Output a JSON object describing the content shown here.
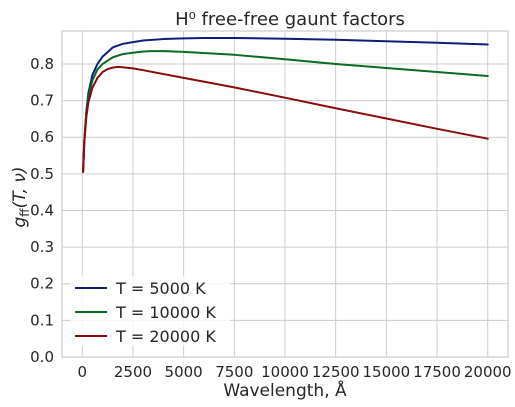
{
  "chart_data": {
    "type": "line",
    "title": "H⁰ free-free gaunt factors",
    "xlabel": "Wavelength, Å",
    "ylabel": "g_ff(T, ν)",
    "xlim": [
      -1000,
      21000
    ],
    "ylim": [
      0.0,
      0.89
    ],
    "grid": true,
    "legend_position": "lower-left",
    "x_ticks": [
      "0",
      "2500",
      "5000",
      "7500",
      "10000",
      "12500",
      "15000",
      "17500",
      "20000"
    ],
    "y_ticks": [
      "0.0",
      "0.1",
      "0.2",
      "0.3",
      "0.4",
      "0.5",
      "0.6",
      "0.7",
      "0.8"
    ],
    "series": [
      {
        "name": "T = 5000 K",
        "color": "#0b1f7a",
        "x": [
          40,
          100,
          200,
          300,
          500,
          750,
          1000,
          1500,
          2000,
          3000,
          4000,
          5000,
          6000,
          7500,
          10000,
          12500,
          15000,
          17500,
          20000
        ],
        "y": [
          0.505,
          0.59,
          0.67,
          0.72,
          0.77,
          0.8,
          0.82,
          0.845,
          0.855,
          0.864,
          0.868,
          0.87,
          0.871,
          0.871,
          0.869,
          0.866,
          0.862,
          0.858,
          0.853
        ]
      },
      {
        "name": "T = 10000 K",
        "color": "#0b6b1e",
        "x": [
          40,
          100,
          200,
          300,
          500,
          750,
          1000,
          1500,
          2000,
          3000,
          3500,
          4000,
          5000,
          7500,
          10000,
          12500,
          15000,
          17500,
          20000
        ],
        "y": [
          0.505,
          0.59,
          0.665,
          0.71,
          0.755,
          0.785,
          0.8,
          0.818,
          0.827,
          0.834,
          0.835,
          0.835,
          0.833,
          0.825,
          0.813,
          0.8,
          0.789,
          0.778,
          0.767
        ]
      },
      {
        "name": "T = 20000 K",
        "color": "#8b0a0a",
        "x": [
          40,
          100,
          200,
          300,
          500,
          750,
          1000,
          1250,
          1500,
          1750,
          2000,
          2500,
          3000,
          5000,
          7500,
          10000,
          12500,
          15000,
          17500,
          20000
        ],
        "y": [
          0.505,
          0.585,
          0.655,
          0.695,
          0.735,
          0.762,
          0.778,
          0.786,
          0.79,
          0.792,
          0.791,
          0.788,
          0.783,
          0.762,
          0.736,
          0.708,
          0.679,
          0.651,
          0.623,
          0.596
        ]
      }
    ]
  }
}
